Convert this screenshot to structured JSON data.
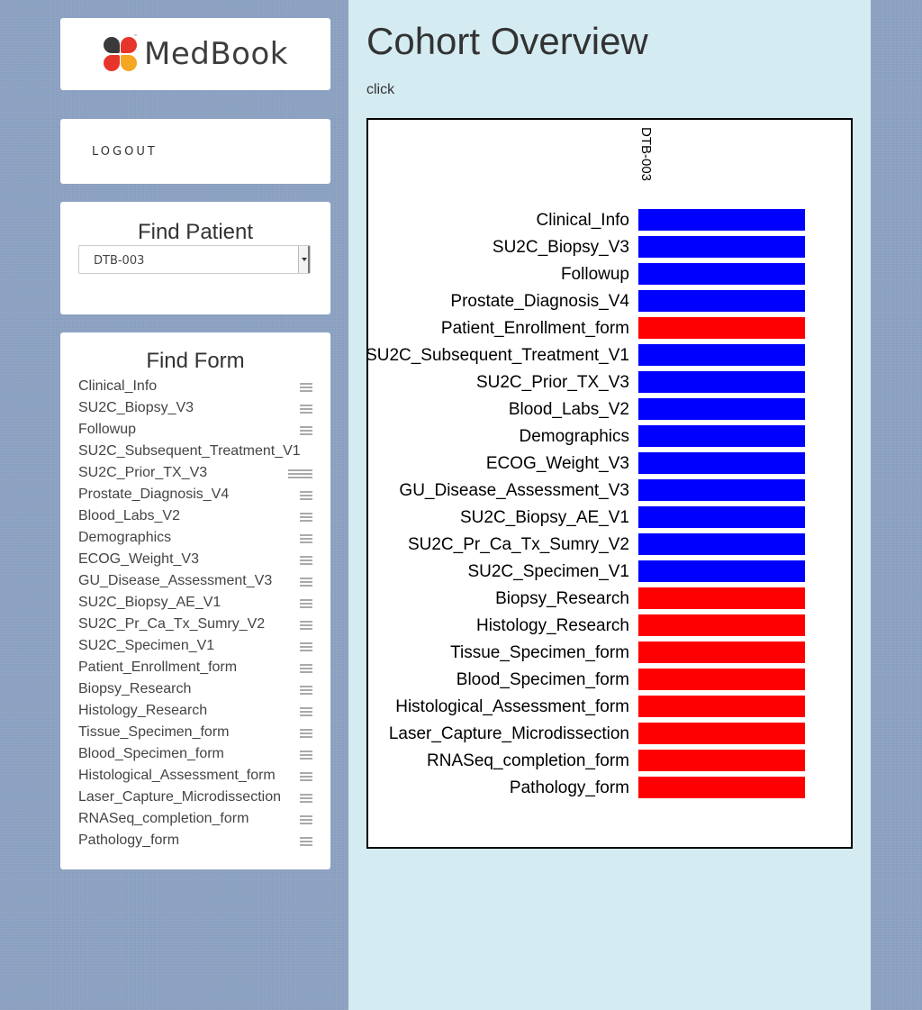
{
  "app": {
    "logo_text": "MedBook",
    "logo_tm": "™"
  },
  "nav": {
    "logout_label": "LOGOUT"
  },
  "find_patient": {
    "title": "Find Patient",
    "selected": "DTB-003"
  },
  "find_form": {
    "title": "Find Form",
    "items": [
      "Clinical_Info",
      "SU2C_Biopsy_V3",
      "Followup",
      "SU2C_Subsequent_Treatment_V1",
      "SU2C_Prior_TX_V3",
      "Prostate_Diagnosis_V4",
      "Blood_Labs_V2",
      "Demographics",
      "ECOG_Weight_V3",
      "GU_Disease_Assessment_V3",
      "SU2C_Biopsy_AE_V1",
      "SU2C_Pr_Ca_Tx_Sumry_V2",
      "SU2C_Specimen_V1",
      "Patient_Enrollment_form",
      "Biopsy_Research",
      "Histology_Research",
      "Tissue_Specimen_form",
      "Blood_Specimen_form",
      "Histological_Assessment_form",
      "Laser_Capture_Microdissection",
      "RNASeq_completion_form",
      "Pathology_form"
    ]
  },
  "main": {
    "title": "Cohort Overview",
    "hint": "click"
  },
  "colors": {
    "present": "#0000ff",
    "missing": "#ff0000"
  },
  "chart_data": {
    "type": "heatmap",
    "columns": [
      "DTB-003"
    ],
    "rows": [
      {
        "label": "Clinical_Info",
        "status": "present"
      },
      {
        "label": "SU2C_Biopsy_V3",
        "status": "present"
      },
      {
        "label": "Followup",
        "status": "present"
      },
      {
        "label": "Prostate_Diagnosis_V4",
        "status": "present"
      },
      {
        "label": "Patient_Enrollment_form",
        "status": "missing"
      },
      {
        "label": "SU2C_Subsequent_Treatment_V1",
        "status": "present"
      },
      {
        "label": "SU2C_Prior_TX_V3",
        "status": "present"
      },
      {
        "label": "Blood_Labs_V2",
        "status": "present"
      },
      {
        "label": "Demographics",
        "status": "present"
      },
      {
        "label": "ECOG_Weight_V3",
        "status": "present"
      },
      {
        "label": "GU_Disease_Assessment_V3",
        "status": "present"
      },
      {
        "label": "SU2C_Biopsy_AE_V1",
        "status": "present"
      },
      {
        "label": "SU2C_Pr_Ca_Tx_Sumry_V2",
        "status": "present"
      },
      {
        "label": "SU2C_Specimen_V1",
        "status": "present"
      },
      {
        "label": "Biopsy_Research",
        "status": "missing"
      },
      {
        "label": "Histology_Research",
        "status": "missing"
      },
      {
        "label": "Tissue_Specimen_form",
        "status": "missing"
      },
      {
        "label": "Blood_Specimen_form",
        "status": "missing"
      },
      {
        "label": "Histological_Assessment_form",
        "status": "missing"
      },
      {
        "label": "Laser_Capture_Microdissection",
        "status": "missing"
      },
      {
        "label": "RNASeq_completion_form",
        "status": "missing"
      },
      {
        "label": "Pathology_form",
        "status": "missing"
      }
    ]
  }
}
